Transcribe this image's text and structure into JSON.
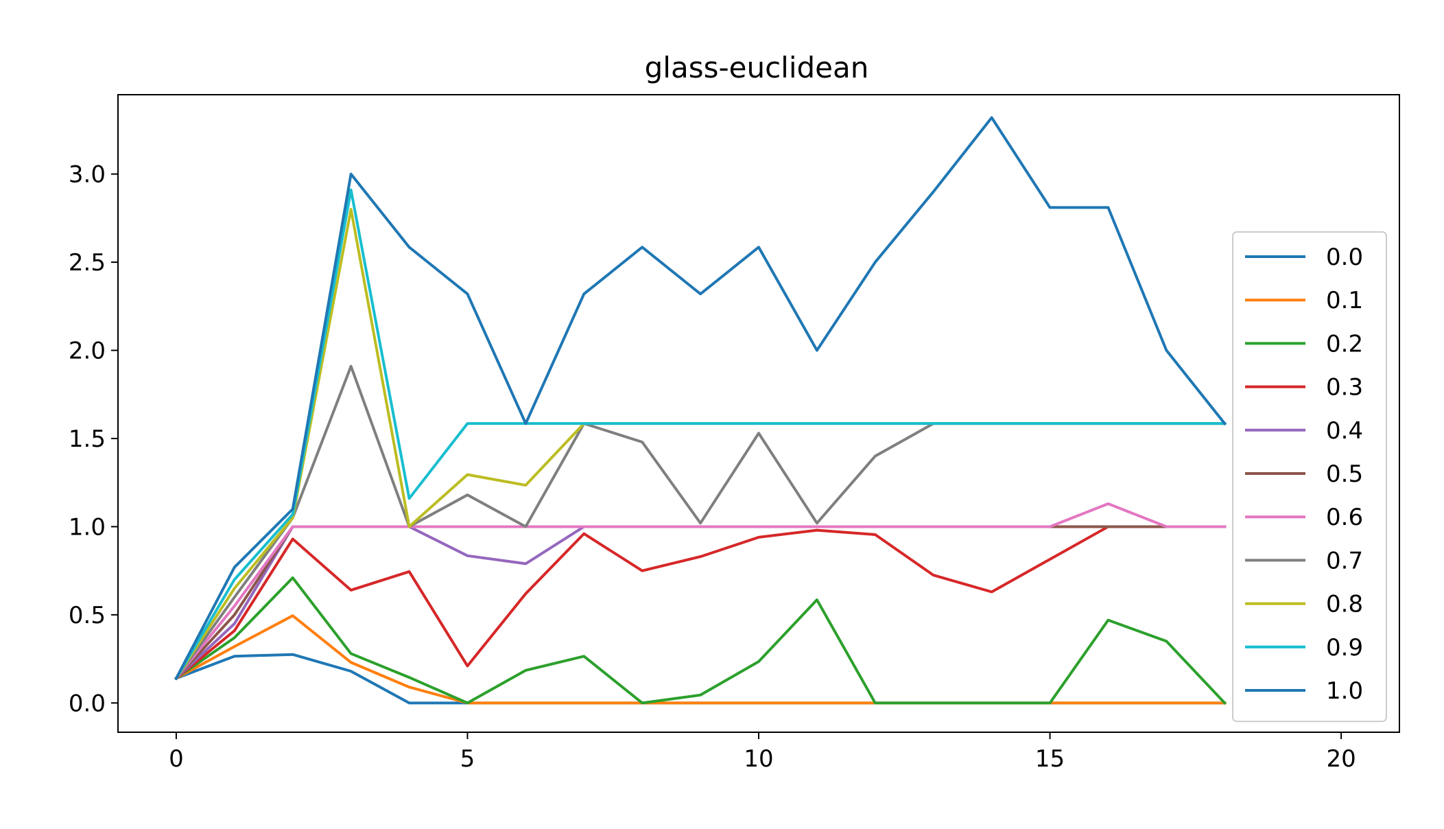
{
  "chart_data": {
    "type": "line",
    "title": "glass-euclidean",
    "xlabel": "",
    "ylabel": "",
    "xlim": [
      -1,
      21
    ],
    "ylim": [
      -0.166,
      3.45
    ],
    "xticks": [
      "0",
      "5",
      "10",
      "15",
      "20"
    ],
    "xtick_values": [
      0,
      5,
      10,
      15,
      20
    ],
    "yticks": [
      "0.0",
      "0.5",
      "1.0",
      "1.5",
      "2.0",
      "2.5",
      "3.0"
    ],
    "ytick_values": [
      0.0,
      0.5,
      1.0,
      1.5,
      2.0,
      2.5,
      3.0
    ],
    "grid": false,
    "legend_position": "center-right",
    "x": [
      0,
      1,
      2,
      3,
      4,
      5,
      6,
      7,
      8,
      9,
      10,
      11,
      12,
      13,
      14,
      15,
      16,
      17,
      18
    ],
    "series": [
      {
        "name": "0.0",
        "color": "#1f77b4",
        "values": [
          0.14,
          0.265,
          0.275,
          0.18,
          0.0,
          0.0,
          0.0,
          0.0,
          0.0,
          0.0,
          0.0,
          0.0,
          0.0,
          0.0,
          0.0,
          0.0,
          0.0,
          0.0,
          0.0
        ]
      },
      {
        "name": "0.1",
        "color": "#ff7f0e",
        "values": [
          0.14,
          0.32,
          0.495,
          0.23,
          0.09,
          0.0,
          0.0,
          0.0,
          0.0,
          0.0,
          0.0,
          0.0,
          0.0,
          0.0,
          0.0,
          0.0,
          0.0,
          0.0,
          0.0
        ]
      },
      {
        "name": "0.2",
        "color": "#2ca02c",
        "values": [
          0.14,
          0.37,
          0.71,
          0.28,
          0.145,
          0.0,
          0.185,
          0.265,
          0.0,
          0.045,
          0.235,
          0.585,
          0.0,
          0.0,
          0.0,
          0.0,
          0.47,
          0.35,
          0.0
        ]
      },
      {
        "name": "0.3",
        "color": "#d62728",
        "values": [
          0.14,
          0.41,
          0.93,
          0.64,
          0.745,
          0.21,
          0.62,
          0.96,
          0.75,
          0.83,
          0.94,
          0.98,
          0.955,
          0.725,
          0.63,
          0.815,
          1.0,
          1.0,
          1.0
        ]
      },
      {
        "name": "0.4",
        "color": "#9467bd",
        "values": [
          0.14,
          0.45,
          1.0,
          1.0,
          1.0,
          0.835,
          0.79,
          1.0,
          1.0,
          1.0,
          1.0,
          1.0,
          1.0,
          1.0,
          1.0,
          1.0,
          1.0,
          1.0,
          1.0
        ]
      },
      {
        "name": "0.5",
        "color": "#8c564b",
        "values": [
          0.14,
          0.5,
          1.0,
          1.0,
          1.0,
          1.0,
          1.0,
          1.0,
          1.0,
          1.0,
          1.0,
          1.0,
          1.0,
          1.0,
          1.0,
          1.0,
          1.0,
          1.0,
          1.0
        ]
      },
      {
        "name": "0.6",
        "color": "#e377c2",
        "values": [
          0.14,
          0.55,
          1.0,
          1.0,
          1.0,
          1.0,
          1.0,
          1.0,
          1.0,
          1.0,
          1.0,
          1.0,
          1.0,
          1.0,
          1.0,
          1.0,
          1.13,
          1.0,
          1.0
        ]
      },
      {
        "name": "0.7",
        "color": "#7f7f7f",
        "values": [
          0.14,
          0.6,
          1.05,
          1.91,
          1.0,
          1.18,
          1.0,
          1.585,
          1.48,
          1.02,
          1.53,
          1.02,
          1.4,
          1.585,
          1.585,
          1.585,
          1.585,
          1.585,
          1.585
        ]
      },
      {
        "name": "0.8",
        "color": "#bcbd22",
        "values": [
          0.14,
          0.65,
          1.05,
          2.8,
          1.0,
          1.295,
          1.235,
          1.585,
          1.585,
          1.585,
          1.585,
          1.585,
          1.585,
          1.585,
          1.585,
          1.585,
          1.585,
          1.585,
          1.585
        ]
      },
      {
        "name": "0.9",
        "color": "#17becf",
        "values": [
          0.14,
          0.7,
          1.07,
          2.91,
          1.16,
          1.585,
          1.585,
          1.585,
          1.585,
          1.585,
          1.585,
          1.585,
          1.585,
          1.585,
          1.585,
          1.585,
          1.585,
          1.585,
          1.585
        ]
      },
      {
        "name": "1.0",
        "color": "#1f77b4",
        "values": [
          0.14,
          0.77,
          1.1,
          3.0,
          2.585,
          2.32,
          1.585,
          2.32,
          2.585,
          2.32,
          2.585,
          2.0,
          2.5,
          2.9,
          3.32,
          2.81,
          2.81,
          2.0,
          1.585
        ]
      }
    ]
  }
}
